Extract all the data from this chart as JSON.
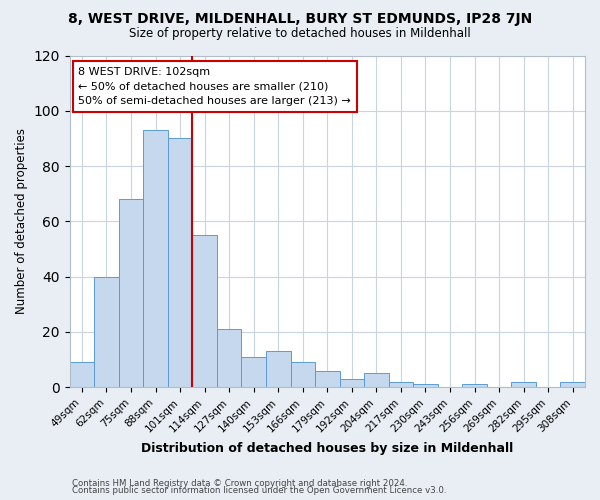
{
  "title": "8, WEST DRIVE, MILDENHALL, BURY ST EDMUNDS, IP28 7JN",
  "subtitle": "Size of property relative to detached houses in Mildenhall",
  "xlabel": "Distribution of detached houses by size in Mildenhall",
  "ylabel": "Number of detached properties",
  "bar_labels": [
    "49sqm",
    "62sqm",
    "75sqm",
    "88sqm",
    "101sqm",
    "114sqm",
    "127sqm",
    "140sqm",
    "153sqm",
    "166sqm",
    "179sqm",
    "192sqm",
    "204sqm",
    "217sqm",
    "230sqm",
    "243sqm",
    "256sqm",
    "269sqm",
    "282sqm",
    "295sqm",
    "308sqm"
  ],
  "bar_values": [
    9,
    40,
    68,
    93,
    90,
    55,
    21,
    11,
    13,
    9,
    6,
    3,
    5,
    2,
    1,
    0,
    1,
    0,
    2,
    0,
    2
  ],
  "bar_color": "#c5d8ed",
  "bar_edgecolor": "#5b9bd5",
  "vline_x": 5,
  "vline_color": "#cc0000",
  "annotation_title": "8 WEST DRIVE: 102sqm",
  "annotation_line1": "← 50% of detached houses are smaller (210)",
  "annotation_line2": "50% of semi-detached houses are larger (213) →",
  "annotation_box_color": "#ffffff",
  "annotation_box_edgecolor": "#cc0000",
  "ylim": [
    0,
    120
  ],
  "yticks": [
    0,
    20,
    40,
    60,
    80,
    100,
    120
  ],
  "footer1": "Contains HM Land Registry data © Crown copyright and database right 2024.",
  "footer2": "Contains public sector information licensed under the Open Government Licence v3.0.",
  "bg_color": "#e8eef4",
  "plot_bg_color": "#ffffff",
  "grid_color": "#c8d4e0"
}
